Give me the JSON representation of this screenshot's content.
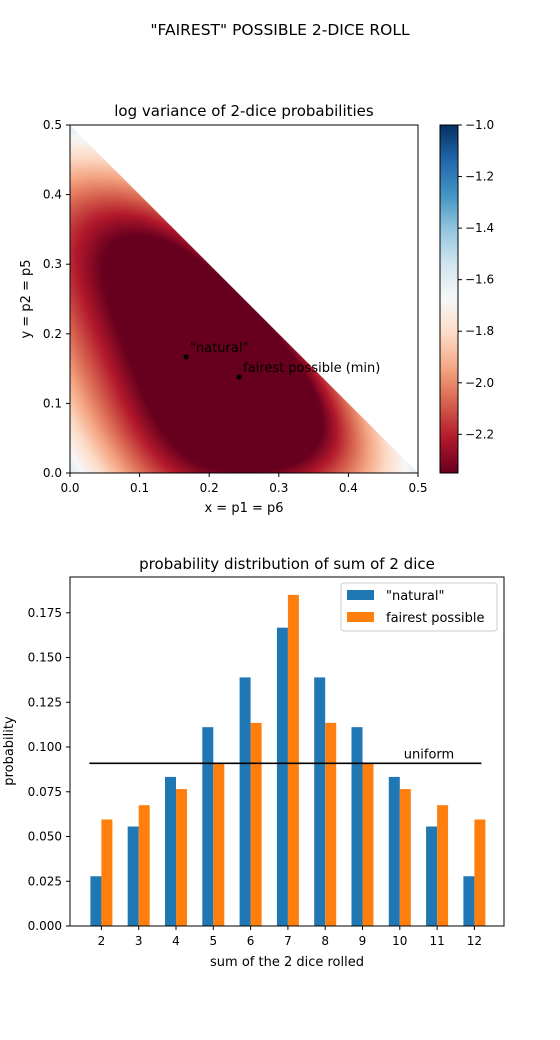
{
  "suptitle": "\"FAIREST\" POSSIBLE 2-DICE ROLL",
  "chart_data": [
    {
      "type": "heatmap",
      "title": "log variance of 2-dice probabilities",
      "xlabel": "x = p1 = p6",
      "ylabel": "y = p2 = p5",
      "xlim": [
        0,
        0.5
      ],
      "ylim": [
        0,
        0.5
      ],
      "xticks": [
        0.0,
        0.1,
        0.2,
        0.3,
        0.4,
        0.5
      ],
      "yticks": [
        0.0,
        0.1,
        0.2,
        0.3,
        0.4,
        0.5
      ],
      "domain": "x + y <= 0.5",
      "colormap": "RdBu",
      "colorbar": {
        "range": [
          -2.35,
          -1.0
        ],
        "ticks": [
          -1.0,
          -1.2,
          -1.4,
          -1.6,
          -1.8,
          -2.0,
          -2.2
        ]
      },
      "points": [
        {
          "label": "\"natural\"",
          "x": 0.1667,
          "y": 0.1667
        },
        {
          "label": "fairest possible (min)",
          "x": 0.243,
          "y": 0.138
        }
      ]
    },
    {
      "type": "bar",
      "title": "probability distribution of sum of 2 dice",
      "xlabel": "sum of the 2 dice rolled",
      "ylabel": "probability",
      "categories": [
        "2",
        "3",
        "4",
        "5",
        "6",
        "7",
        "8",
        "9",
        "10",
        "11",
        "12"
      ],
      "ylim": [
        0,
        0.195
      ],
      "yticks": [
        0.0,
        0.025,
        0.05,
        0.075,
        0.1,
        0.125,
        0.15,
        0.175
      ],
      "legend_position": "top-right",
      "series": [
        {
          "name": "\"natural\"",
          "color": "#1f77b4",
          "values": [
            0.0278,
            0.0556,
            0.0833,
            0.1111,
            0.1389,
            0.1667,
            0.1389,
            0.1111,
            0.0833,
            0.0556,
            0.0278
          ]
        },
        {
          "name": "fairest possible",
          "color": "#ff7f0e",
          "values": [
            0.0595,
            0.0675,
            0.0765,
            0.0905,
            0.1135,
            0.185,
            0.1135,
            0.0905,
            0.0765,
            0.0675,
            0.0595
          ]
        }
      ],
      "reference_line": {
        "label": "uniform",
        "value": 0.0909
      }
    }
  ]
}
